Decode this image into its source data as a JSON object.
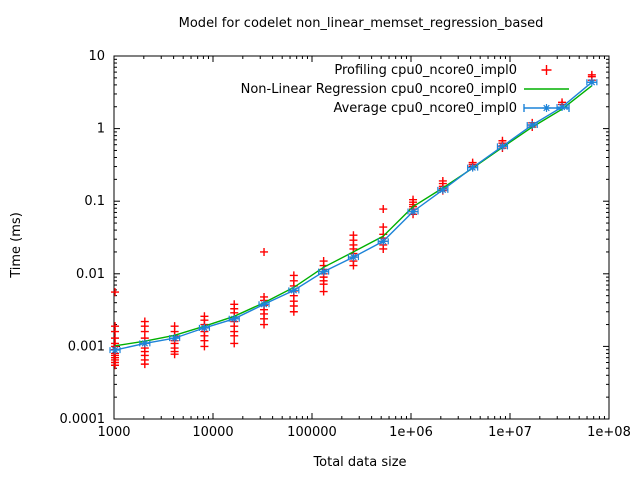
{
  "title": "Model for codelet non_linear_memset_regression_based",
  "chart_data": {
    "type": "line",
    "title": "Model for codelet non_linear_memset_regression_based",
    "xlabel": "Total data size",
    "ylabel": "Time (ms)",
    "log_x": true,
    "log_y": true,
    "xlim": [
      1000,
      100000000
    ],
    "ylim": [
      0.0001,
      10
    ],
    "grid": false,
    "legend_position": "top-right-inside",
    "x_ticks": [
      {
        "label": "1000",
        "value": 1000
      },
      {
        "label": "10000",
        "value": 10000
      },
      {
        "label": "100000",
        "value": 100000
      },
      {
        "label": "1e+06",
        "value": 1000000
      },
      {
        "label": "1e+07",
        "value": 10000000
      },
      {
        "label": "1e+08",
        "value": 100000000
      }
    ],
    "y_ticks": [
      {
        "label": "10",
        "value": 10
      },
      {
        "label": "1",
        "value": 1
      },
      {
        "label": "0.1",
        "value": 0.1
      },
      {
        "label": "0.01",
        "value": 0.01
      },
      {
        "label": "0.001",
        "value": 0.001
      },
      {
        "label": "0.0001",
        "value": 0.0001
      }
    ],
    "series": [
      {
        "name": "Profiling cpu0_ncore0_impl0",
        "type": "scatter",
        "marker": "plus",
        "color": "#ff0000",
        "legend_marker": "plus",
        "clusters": [
          {
            "x": 1024,
            "y": [
              0.00055,
              0.0006,
              0.00065,
              0.0007,
              0.00075,
              0.0008,
              0.0009,
              0.001,
              0.0011,
              0.0013,
              0.0016,
              0.0019,
              0.0056
            ]
          },
          {
            "x": 2048,
            "y": [
              0.00057,
              0.00065,
              0.00075,
              0.00085,
              0.00095,
              0.0011,
              0.0013,
              0.0016,
              0.0019,
              0.0022
            ]
          },
          {
            "x": 4096,
            "y": [
              0.00078,
              0.00085,
              0.00095,
              0.0011,
              0.0012,
              0.0014,
              0.0016,
              0.0019
            ]
          },
          {
            "x": 8192,
            "y": [
              0.001,
              0.0012,
              0.0014,
              0.0016,
              0.0018,
              0.002,
              0.0023,
              0.0026
            ]
          },
          {
            "x": 16384,
            "y": [
              0.0011,
              0.0014,
              0.0016,
              0.0019,
              0.0022,
              0.0025,
              0.0029,
              0.0033,
              0.0038
            ]
          },
          {
            "x": 32768,
            "y": [
              0.002,
              0.0024,
              0.0028,
              0.0032,
              0.0037,
              0.0043,
              0.0048,
              0.02
            ]
          },
          {
            "x": 65536,
            "y": [
              0.003,
              0.0036,
              0.0042,
              0.005,
              0.0058,
              0.0068,
              0.008,
              0.0095
            ]
          },
          {
            "x": 131072,
            "y": [
              0.0057,
              0.0072,
              0.008,
              0.009,
              0.01,
              0.0115,
              0.013,
              0.015
            ]
          },
          {
            "x": 262144,
            "y": [
              0.013,
              0.015,
              0.017,
              0.019,
              0.022,
              0.025,
              0.029,
              0.034
            ]
          },
          {
            "x": 524288,
            "y": [
              0.022,
              0.025,
              0.028,
              0.031,
              0.035,
              0.044,
              0.078
            ]
          },
          {
            "x": 1048576,
            "y": [
              0.066,
              0.072,
              0.078,
              0.084,
              0.09,
              0.097,
              0.105
            ]
          },
          {
            "x": 2097152,
            "y": [
              0.14,
              0.15,
              0.16,
              0.175,
              0.19
            ]
          },
          {
            "x": 4194304,
            "y": [
              0.3,
              0.32,
              0.34
            ]
          },
          {
            "x": 8388608,
            "y": [
              0.54,
              0.58,
              0.63,
              0.68
            ]
          },
          {
            "x": 16777216,
            "y": [
              1.05,
              1.12,
              1.2
            ]
          },
          {
            "x": 33554432,
            "y": [
              2.15,
              2.3
            ]
          },
          {
            "x": 67108864,
            "y": [
              4.65,
              5.2,
              5.5
            ]
          }
        ]
      },
      {
        "name": "Non-Linear Regression cpu0_ncore0_impl0",
        "type": "line",
        "marker": "none",
        "color": "#00b000",
        "legend_marker": "line",
        "x": [
          1024,
          2048,
          4096,
          8192,
          16384,
          32768,
          65536,
          131072,
          262144,
          524288,
          1048576,
          2097152,
          4194304,
          8388608,
          16777216,
          33554432,
          67108864
        ],
        "y": [
          0.00102,
          0.00118,
          0.00142,
          0.0019,
          0.0026,
          0.004,
          0.0065,
          0.0123,
          0.02,
          0.033,
          0.084,
          0.152,
          0.285,
          0.55,
          1.05,
          1.85,
          3.9
        ]
      },
      {
        "name": "Average cpu0_ncore0_impl0",
        "type": "line",
        "marker": "asterisk",
        "errorbars": "x",
        "color": "#1c83d8",
        "legend_marker": "xerrorbar-line",
        "x": [
          1024,
          2048,
          4096,
          8192,
          16384,
          32768,
          65536,
          131072,
          262144,
          524288,
          1048576,
          2097152,
          4194304,
          8388608,
          16777216,
          33554432,
          67108864
        ],
        "y": [
          0.00089,
          0.0011,
          0.0013,
          0.0018,
          0.0024,
          0.0038,
          0.0059,
          0.0107,
          0.017,
          0.028,
          0.072,
          0.143,
          0.29,
          0.57,
          1.12,
          1.98,
          4.35
        ]
      }
    ]
  }
}
